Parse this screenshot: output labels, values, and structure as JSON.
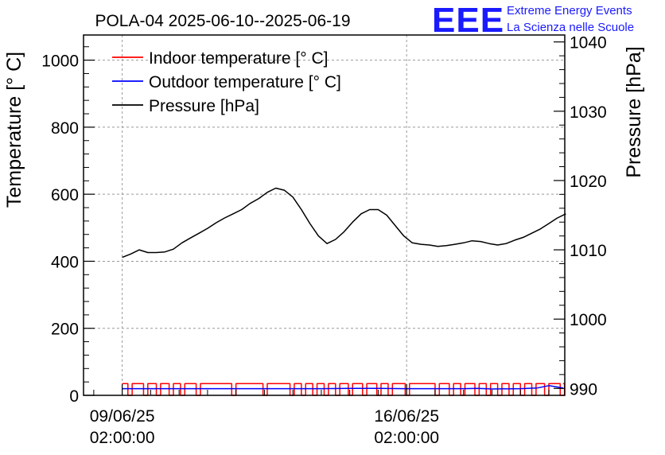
{
  "chart_data": {
    "type": "line",
    "title": "POLA-04 2025-06-10--2025-06-19",
    "ylabel": "Temperature [° C]",
    "y2label": "Pressure [hPa]",
    "ylim": [
      0,
      1075
    ],
    "y2lim": [
      989,
      1041
    ],
    "yticks": [
      "0",
      "200",
      "400",
      "600",
      "800",
      "1000"
    ],
    "y2ticks": [
      "990",
      "1000",
      "1010",
      "1020",
      "1030",
      "1040"
    ],
    "xlim": [
      -1.36,
      15.56
    ],
    "xticks": [
      {
        "x": 0,
        "line1": "09/06/25",
        "line2": "02:00:00"
      },
      {
        "x": 10,
        "line1": "16/06/25",
        "line2": "02:00:00"
      }
    ],
    "grid": true,
    "legend_position": "top-left",
    "series": [
      {
        "name": "Indoor temperature [° C]",
        "color": "#ff0000",
        "axis": "left",
        "baseline": 35,
        "dropouts": [
          [
            0.2,
            0.35
          ],
          [
            0.75,
            0.9
          ],
          [
            1.2,
            1.35
          ],
          [
            1.65,
            1.8
          ],
          [
            2.05,
            2.2
          ],
          [
            2.6,
            2.75
          ],
          [
            3.85,
            4.0
          ],
          [
            4.95,
            5.1
          ],
          [
            5.9,
            6.05
          ],
          [
            6.3,
            6.45
          ],
          [
            6.7,
            6.85
          ],
          [
            7.1,
            7.25
          ],
          [
            7.5,
            7.65
          ],
          [
            7.95,
            8.1
          ],
          [
            8.45,
            8.6
          ],
          [
            8.95,
            9.1
          ],
          [
            9.35,
            9.5
          ],
          [
            9.95,
            10.1
          ],
          [
            11.0,
            11.15
          ],
          [
            11.5,
            11.65
          ],
          [
            11.9,
            12.05
          ],
          [
            12.4,
            12.55
          ],
          [
            12.8,
            12.95
          ],
          [
            13.2,
            13.35
          ],
          [
            13.6,
            13.75
          ],
          [
            14.0,
            14.15
          ],
          [
            14.4,
            14.55
          ],
          [
            14.85,
            15.0
          ],
          [
            15.4,
            15.55
          ]
        ],
        "points": [
          [
            0,
            35
          ],
          [
            4,
            35
          ],
          [
            8,
            35
          ],
          [
            12,
            34
          ],
          [
            14,
            33
          ],
          [
            15.5,
            33
          ]
        ]
      },
      {
        "name": "Outdoor temperature [° C]",
        "color": "#0000ff",
        "axis": "left",
        "points": [
          [
            0,
            20
          ],
          [
            1,
            20
          ],
          [
            2,
            20
          ],
          [
            3,
            20
          ],
          [
            4,
            20
          ],
          [
            5,
            20
          ],
          [
            6,
            20
          ],
          [
            7,
            20
          ],
          [
            8,
            21
          ],
          [
            9,
            21
          ],
          [
            10,
            20
          ],
          [
            11,
            20
          ],
          [
            12,
            20
          ],
          [
            12.5,
            21
          ],
          [
            13,
            19
          ],
          [
            14,
            20
          ],
          [
            14.6,
            22
          ],
          [
            15,
            29
          ],
          [
            15.5,
            22
          ]
        ]
      },
      {
        "name": "Pressure [hPa]",
        "color": "#000000",
        "axis": "right",
        "points": [
          [
            0,
            1008.9
          ],
          [
            0.3,
            1009.4
          ],
          [
            0.6,
            1010.0
          ],
          [
            0.9,
            1009.6
          ],
          [
            1.2,
            1009.6
          ],
          [
            1.5,
            1009.7
          ],
          [
            1.8,
            1010.1
          ],
          [
            2.1,
            1011.0
          ],
          [
            2.4,
            1011.7
          ],
          [
            2.7,
            1012.4
          ],
          [
            3.0,
            1013.1
          ],
          [
            3.3,
            1013.9
          ],
          [
            3.6,
            1014.6
          ],
          [
            3.9,
            1015.2
          ],
          [
            4.2,
            1015.8
          ],
          [
            4.5,
            1016.7
          ],
          [
            4.8,
            1017.4
          ],
          [
            5.1,
            1018.3
          ],
          [
            5.4,
            1018.9
          ],
          [
            5.7,
            1018.6
          ],
          [
            6.0,
            1017.6
          ],
          [
            6.3,
            1015.8
          ],
          [
            6.6,
            1013.8
          ],
          [
            6.9,
            1012.0
          ],
          [
            7.2,
            1010.9
          ],
          [
            7.5,
            1011.5
          ],
          [
            7.8,
            1012.6
          ],
          [
            8.1,
            1014.0
          ],
          [
            8.4,
            1015.2
          ],
          [
            8.7,
            1015.8
          ],
          [
            9.0,
            1015.8
          ],
          [
            9.3,
            1015.0
          ],
          [
            9.6,
            1013.5
          ],
          [
            9.9,
            1012.0
          ],
          [
            10.2,
            1011.0
          ],
          [
            10.5,
            1010.8
          ],
          [
            10.8,
            1010.7
          ],
          [
            11.1,
            1010.5
          ],
          [
            11.4,
            1010.6
          ],
          [
            11.7,
            1010.8
          ],
          [
            12.0,
            1011.0
          ],
          [
            12.3,
            1011.3
          ],
          [
            12.6,
            1011.2
          ],
          [
            12.9,
            1010.9
          ],
          [
            13.2,
            1010.7
          ],
          [
            13.5,
            1010.9
          ],
          [
            13.8,
            1011.4
          ],
          [
            14.1,
            1011.8
          ],
          [
            14.4,
            1012.4
          ],
          [
            14.7,
            1013.0
          ],
          [
            15.0,
            1013.8
          ],
          [
            15.3,
            1014.6
          ],
          [
            15.6,
            1015.2
          ]
        ]
      }
    ]
  },
  "logo": {
    "mark": "EEE",
    "line1": "Extreme Energy Events",
    "line2": "La Scienza nelle Scuole"
  }
}
